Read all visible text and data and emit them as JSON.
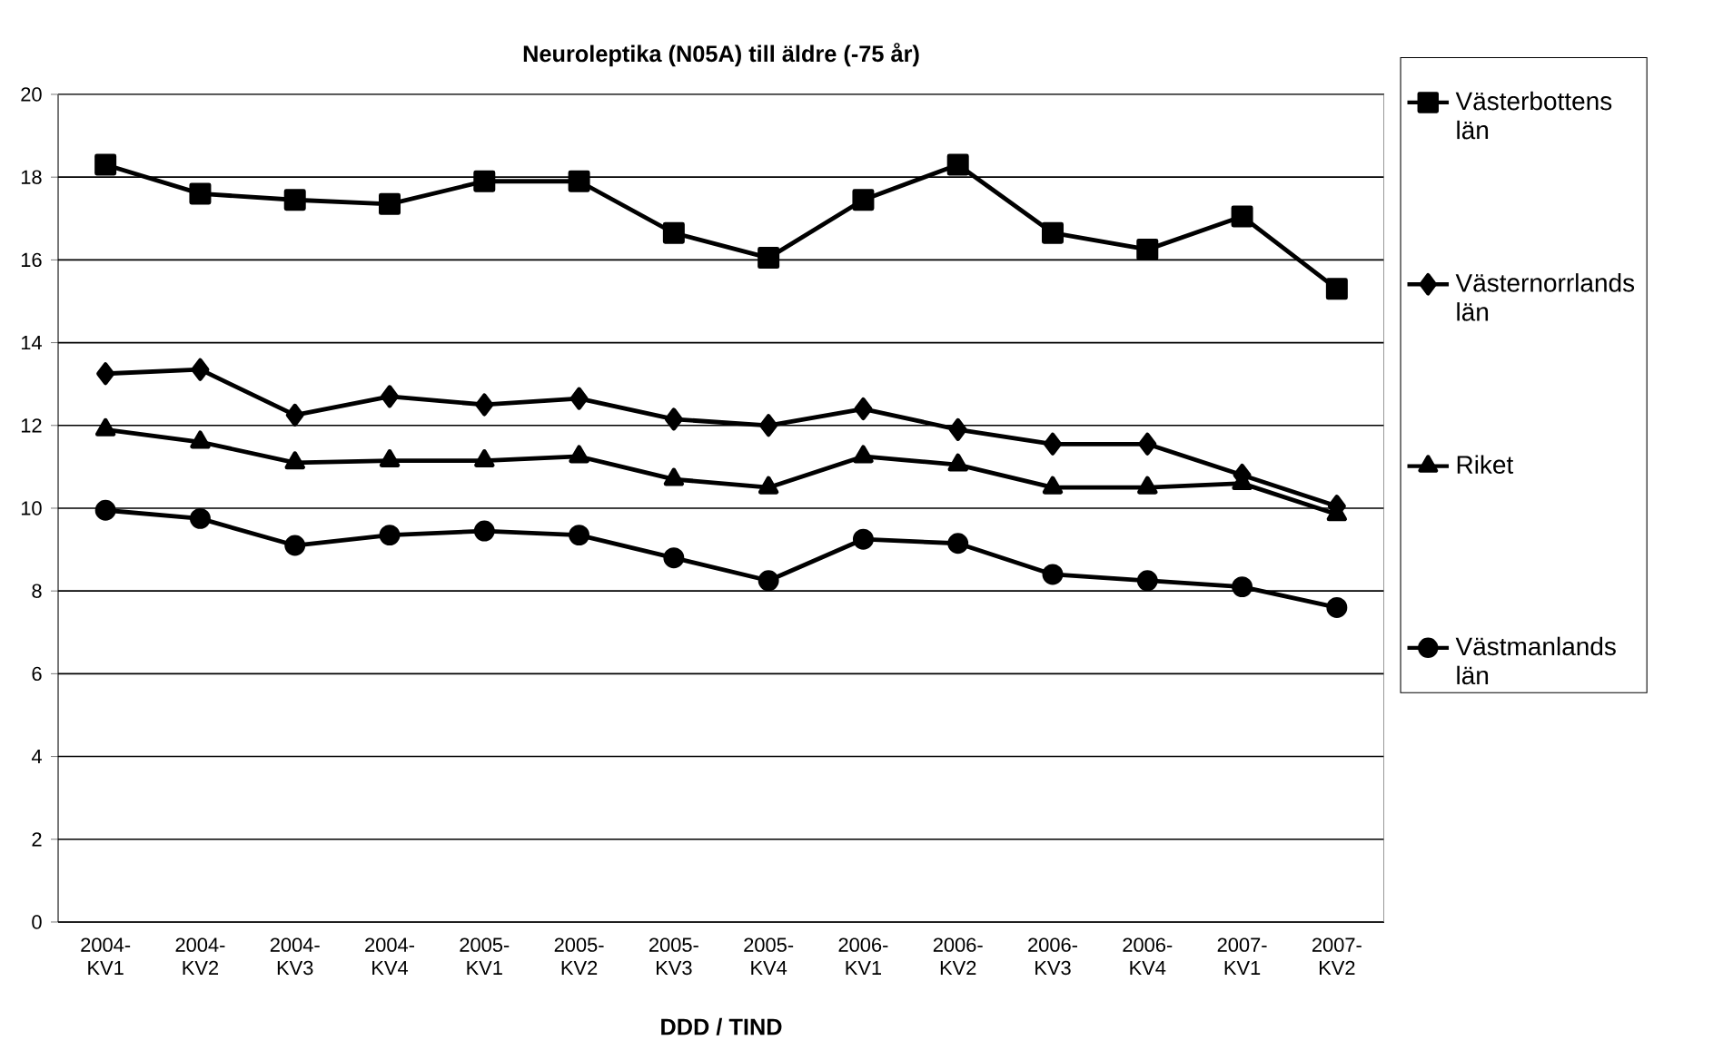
{
  "chart_data": {
    "type": "line",
    "title": "Neuroleptika (N05A) till äldre (-75 år)",
    "xlabel": "DDD / TIND",
    "categories": [
      "2004-KV1",
      "2004-KV2",
      "2004-KV3",
      "2004-KV4",
      "2005-KV1",
      "2005-KV2",
      "2005-KV3",
      "2005-KV4",
      "2006-KV1",
      "2006-KV2",
      "2006-KV3",
      "2006-KV4",
      "2007-KV1",
      "2007-KV2"
    ],
    "series": [
      {
        "name": "Västerbottens län",
        "color": "#000000",
        "marker": "square",
        "values": [
          18.3,
          17.6,
          17.45,
          17.35,
          17.9,
          17.9,
          16.65,
          16.05,
          17.45,
          18.3,
          16.65,
          16.25,
          17.05,
          15.3
        ]
      },
      {
        "name": "Västernorrlands län",
        "color": "#000000",
        "marker": "diamond",
        "values": [
          13.25,
          13.35,
          12.25,
          12.7,
          12.5,
          12.65,
          12.15,
          12.0,
          12.4,
          11.9,
          11.55,
          11.55,
          10.8,
          10.05
        ]
      },
      {
        "name": "Riket",
        "color": "#000000",
        "marker": "triangle",
        "values": [
          11.9,
          11.6,
          11.1,
          11.15,
          11.15,
          11.25,
          10.7,
          10.5,
          11.25,
          11.05,
          10.5,
          10.5,
          10.6,
          9.85
        ]
      },
      {
        "name": "Västmanlands län",
        "color": "#000000",
        "marker": "circle",
        "values": [
          9.95,
          9.75,
          9.1,
          9.35,
          9.45,
          9.35,
          8.8,
          8.25,
          9.25,
          9.15,
          8.4,
          8.25,
          8.1,
          7.6
        ]
      }
    ],
    "ylim": [
      0,
      20
    ],
    "yticks": [
      0,
      2,
      4,
      6,
      8,
      10,
      12,
      14,
      16,
      18,
      20
    ],
    "grid": "y",
    "legend": "right",
    "line_style": "solid"
  }
}
